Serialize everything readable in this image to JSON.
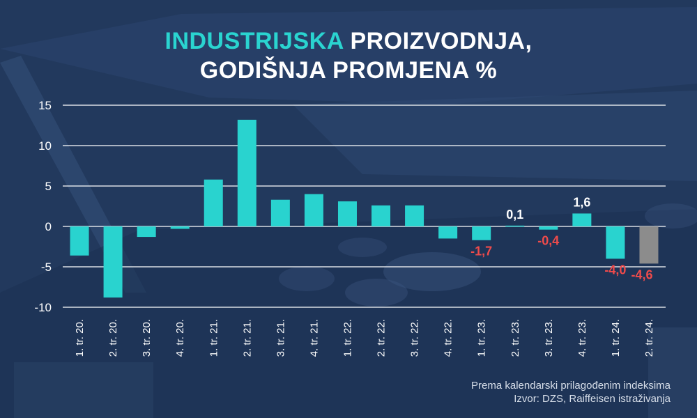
{
  "title": {
    "accent": "INDUSTRIJSKA",
    "line1_rest": "PROIZVODNJA,",
    "line2": "GODIŠNJA PROMJENA %"
  },
  "footnote": {
    "line1": "Prema kalendarski prilagođenim indeksima",
    "line2": "Izvor: DZS, Raiffeisen istraživanja"
  },
  "colors": {
    "bar": "#29d3cf",
    "last_bar": "#8c8c8c",
    "positive_label": "#ffffff",
    "negative_label": "#f04b4b",
    "grid": "#ffffff",
    "axis_text": "#ffffff"
  },
  "chart_data": {
    "type": "bar",
    "categories": [
      "1. tr. 20.",
      "2. tr. 20.",
      "3. tr. 20.",
      "4. tr. 20.",
      "1. tr. 21.",
      "2. tr. 21.",
      "3. tr. 21.",
      "4. tr. 21.",
      "1. tr. 22.",
      "2. tr. 22.",
      "3. tr. 22.",
      "4. tr. 22.",
      "1. tr. 23.",
      "2. tr. 23.",
      "3. tr. 23.",
      "4. tr. 23.",
      "1. tr. 24.",
      "2. tr. 24."
    ],
    "values": [
      -3.6,
      -8.8,
      -1.3,
      -0.3,
      5.8,
      13.2,
      3.3,
      4.0,
      3.1,
      2.6,
      2.6,
      -1.5,
      -1.7,
      0.1,
      -0.4,
      1.6,
      -4.0,
      -4.6
    ],
    "data_labels": [
      "",
      "",
      "",
      "",
      "",
      "",
      "",
      "",
      "",
      "",
      "",
      "",
      "-1,7",
      "0,1",
      "-0,4",
      "1,6",
      "-4,0",
      "-4,6"
    ],
    "yticks": [
      "15",
      "10",
      "5",
      "0",
      "-5",
      "-10"
    ],
    "ytick_values": [
      15,
      10,
      5,
      0,
      -5,
      -10
    ],
    "ylim": [
      -10,
      15
    ],
    "highlight_last": true,
    "grid": true,
    "xlabel": "",
    "ylabel": ""
  }
}
